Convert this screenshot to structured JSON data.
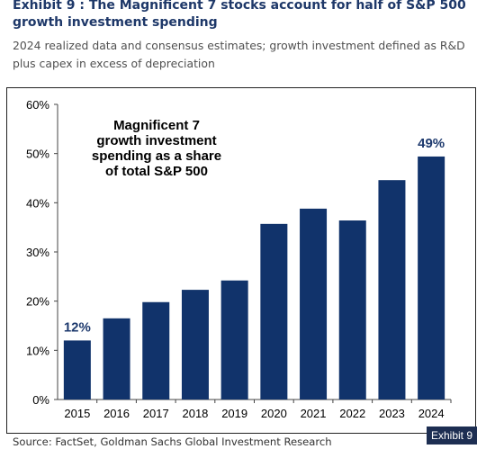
{
  "header": {
    "title": "Exhibit 9 : The Magnificent 7 stocks account for half of S&P 500 growth investment spending",
    "subtitle": "2024 realized data and consensus estimates; growth investment defined as R&D plus capex in excess of depreciation"
  },
  "footer": {
    "source": "Source: FactSet, Goldman Sachs Global Investment Research",
    "exhibit_tag": "Exhibit 9"
  },
  "chart_data": {
    "type": "bar",
    "categories": [
      "2015",
      "2016",
      "2017",
      "2018",
      "2019",
      "2020",
      "2021",
      "2022",
      "2023",
      "2024"
    ],
    "values": [
      12,
      16.5,
      19.8,
      22.3,
      24.2,
      35.7,
      38.8,
      36.4,
      44.6,
      49.4
    ],
    "data_labels": [
      {
        "index": 0,
        "text": "12%"
      },
      {
        "index": 9,
        "text": "49%"
      }
    ],
    "annotation": [
      "Magnificent 7",
      "growth investment",
      "spending as a share",
      "of total  S&P 500"
    ],
    "ylim": [
      0,
      60
    ],
    "yticks": [
      0,
      10,
      20,
      30,
      40,
      50,
      60
    ],
    "ytick_labels": [
      "0%",
      "10%",
      "20%",
      "30%",
      "40%",
      "50%",
      "60%"
    ],
    "grid": false,
    "bar_color": "#11336b",
    "label_color": "#1e3a6e"
  }
}
